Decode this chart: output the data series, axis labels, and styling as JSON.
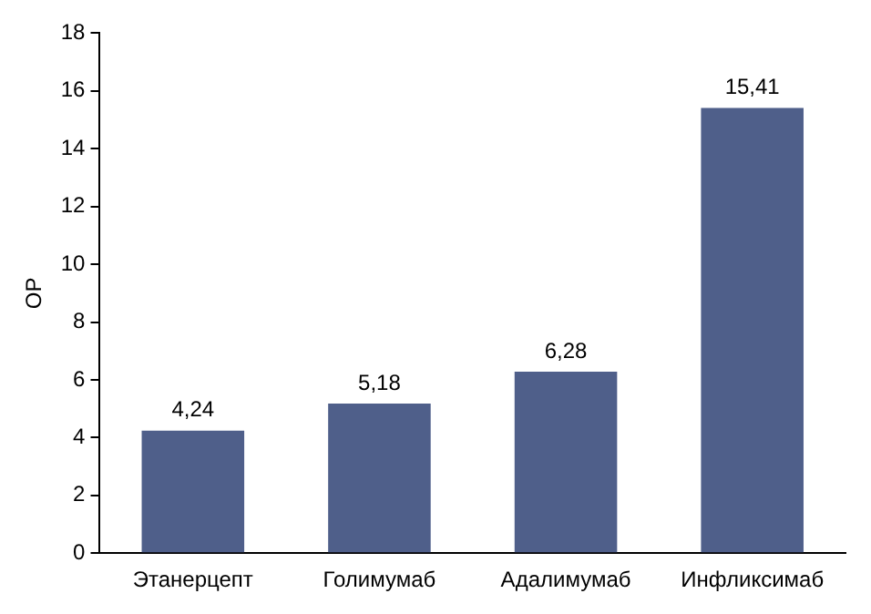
{
  "chart_data": {
    "type": "bar",
    "ylabel": "ОР",
    "categories": [
      "Этанерцепт",
      "Голимумаб",
      "Адалимумаб",
      "Инфликсимаб"
    ],
    "values": [
      4.24,
      5.18,
      6.28,
      15.41
    ],
    "value_labels": [
      "4,24",
      "5,18",
      "6,28",
      "15,41"
    ],
    "color": "#4f5f8a",
    "ylim": [
      0,
      18
    ],
    "yticks": [
      0,
      2,
      4,
      6,
      8,
      10,
      12,
      14,
      16,
      18
    ],
    "grid": false,
    "legend": false
  }
}
